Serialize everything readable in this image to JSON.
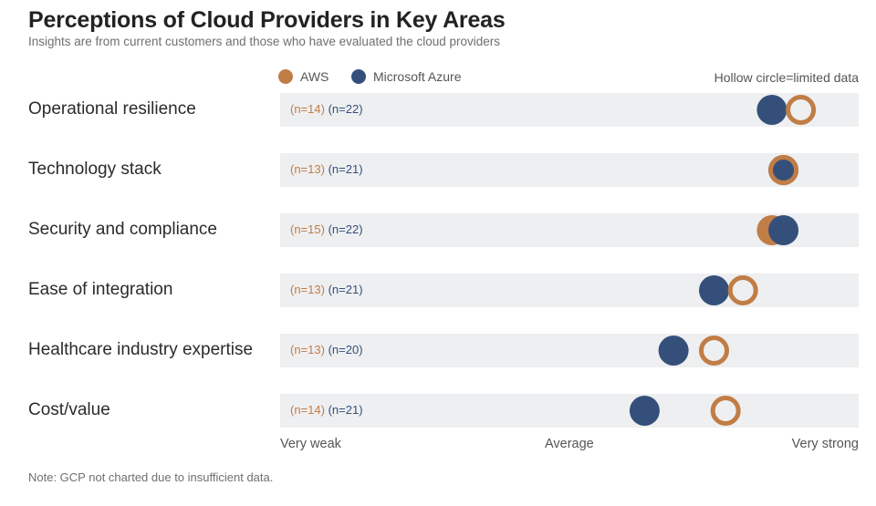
{
  "header": {
    "title": "Perceptions of Cloud Providers in Key Areas",
    "subtitle": "Insights are from current customers and those who have evaluated the cloud providers"
  },
  "legend": {
    "aws_label": "AWS",
    "azure_label": "Microsoft Azure",
    "note": "Hollow circle=limited data"
  },
  "colors": {
    "aws": "#c17d46",
    "azure": "#34507a",
    "bar": "#eeeff1"
  },
  "axis": {
    "left": "Very weak",
    "middle": "Average",
    "right": "Very strong"
  },
  "footer": {
    "note": "Note: GCP not charted due to insufficient data."
  },
  "chart_data": {
    "type": "scatter",
    "title": "Perceptions of Cloud Providers in Key Areas",
    "subtitle": "Insights are from current customers and those who have evaluated the cloud providers",
    "categories": [
      "Operational resilience",
      "Technology stack",
      "Security and compliance",
      "Ease of integration",
      "Healthcare industry expertise",
      "Cost/value"
    ],
    "xlim": [
      0,
      100
    ],
    "x_tick_labels": [
      "Very weak",
      "Average",
      "Very strong"
    ],
    "series": [
      {
        "name": "AWS",
        "color": "#c17d46",
        "values": [
          90,
          87,
          85,
          80,
          75,
          77
        ],
        "hollow": [
          true,
          true,
          false,
          true,
          true,
          true
        ],
        "n_labels": [
          "(n=14)",
          "(n=13)",
          "(n=15)",
          "(n=13)",
          "(n=13)",
          "(n=14)"
        ]
      },
      {
        "name": "Microsoft Azure",
        "color": "#34507a",
        "values": [
          85,
          87,
          87,
          75,
          68,
          63
        ],
        "hollow": [
          false,
          false,
          false,
          false,
          false,
          false
        ],
        "n_labels": [
          "(n=22)",
          "(n=21)",
          "(n=22)",
          "(n=21)",
          "(n=20)",
          "(n=21)"
        ]
      }
    ],
    "legend_position": "top",
    "annotation": "Hollow circle=limited data"
  }
}
